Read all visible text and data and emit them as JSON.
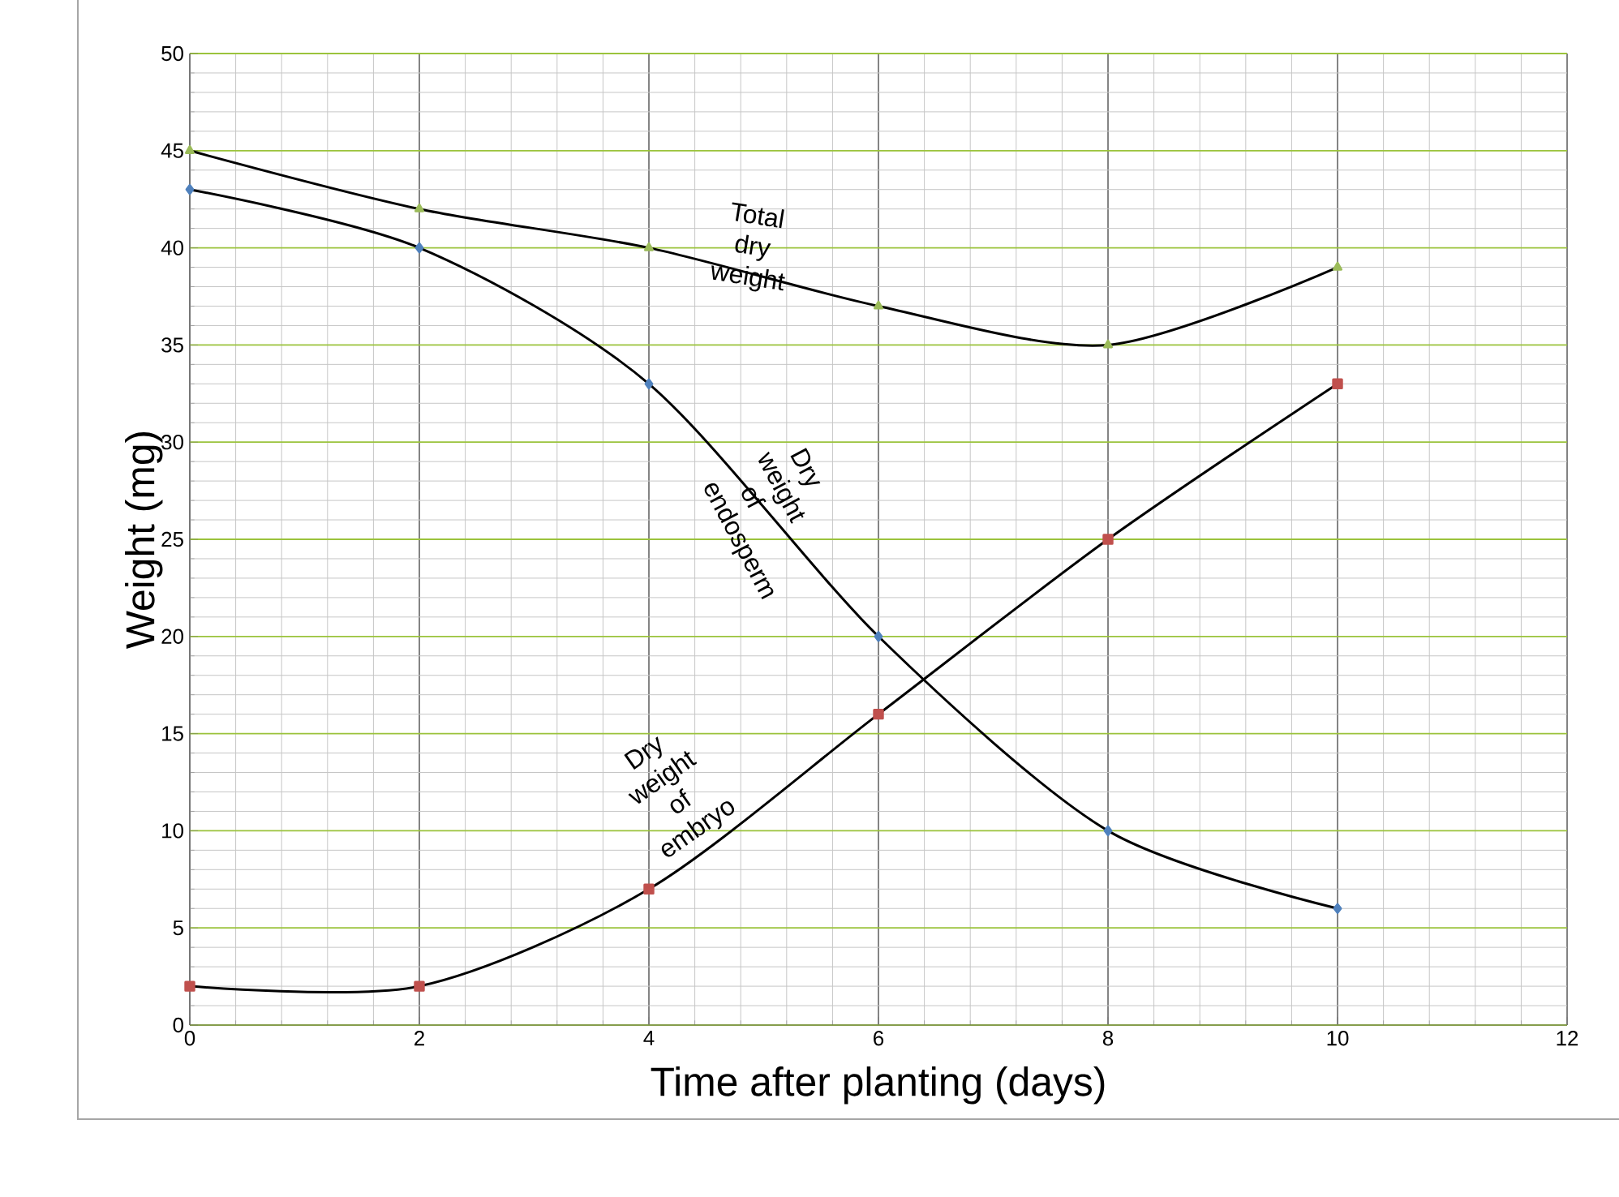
{
  "chart_data": {
    "type": "line",
    "xlabel": "Time after planting (days)",
    "ylabel": "Weight (mg)",
    "x": [
      0,
      2,
      4,
      6,
      8,
      10
    ],
    "series": [
      {
        "name": "Total dry weight",
        "color": "#9bbb59",
        "marker": "triangle",
        "values": [
          45,
          42,
          40,
          37,
          35,
          39
        ]
      },
      {
        "name": "Dry weight of endosperm",
        "color": "#4f81bd",
        "marker": "diamond",
        "values": [
          43,
          40,
          33,
          20,
          10,
          6
        ]
      },
      {
        "name": "Dry weight of embryo",
        "color": "#c0504d",
        "marker": "square",
        "values": [
          2,
          2,
          7,
          16,
          25,
          33
        ]
      }
    ],
    "xlim": [
      0,
      12
    ],
    "ylim": [
      0,
      50
    ],
    "xticks": [
      0,
      2,
      4,
      6,
      8,
      10,
      12
    ],
    "yticks": [
      0,
      5,
      10,
      15,
      20,
      25,
      30,
      35,
      40,
      45,
      50
    ],
    "grid": true
  }
}
